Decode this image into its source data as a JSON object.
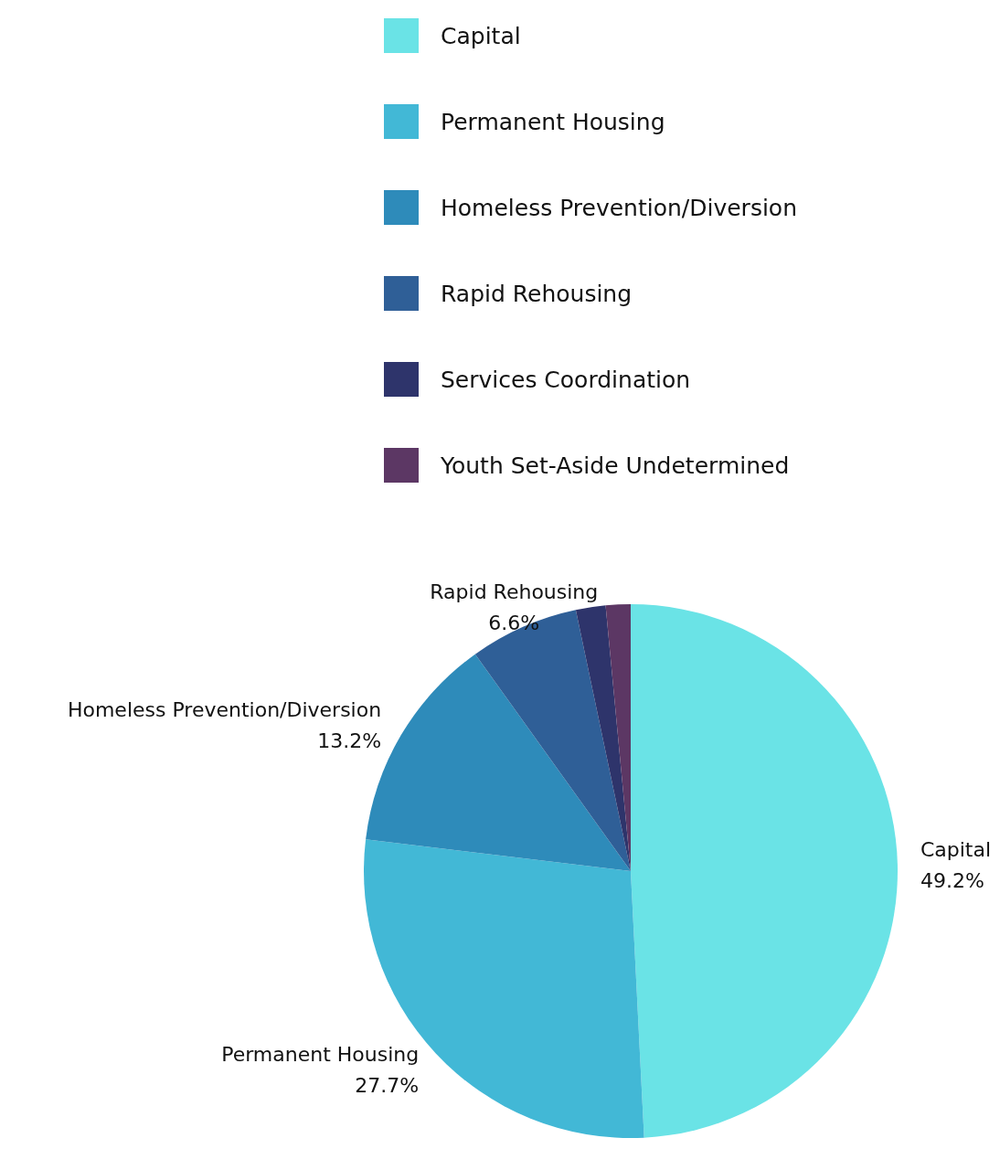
{
  "chart_data": {
    "type": "pie",
    "categories": [
      "Capital",
      "Permanent Housing",
      "Homeless Prevention/Diversion",
      "Rapid Rehousing",
      "Services Coordination",
      "Youth Set-Aside Undetermined"
    ],
    "values": [
      49.2,
      27.7,
      13.2,
      6.6,
      1.8,
      1.5
    ],
    "colors": [
      "#6ae3e6",
      "#42b8d6",
      "#2e8bba",
      "#2f5f97",
      "#2e346b",
      "#5c3764"
    ],
    "value_labels": [
      "49.2%",
      "27.7%",
      "13.2%",
      "6.6%",
      null,
      null
    ],
    "legend": "top"
  }
}
